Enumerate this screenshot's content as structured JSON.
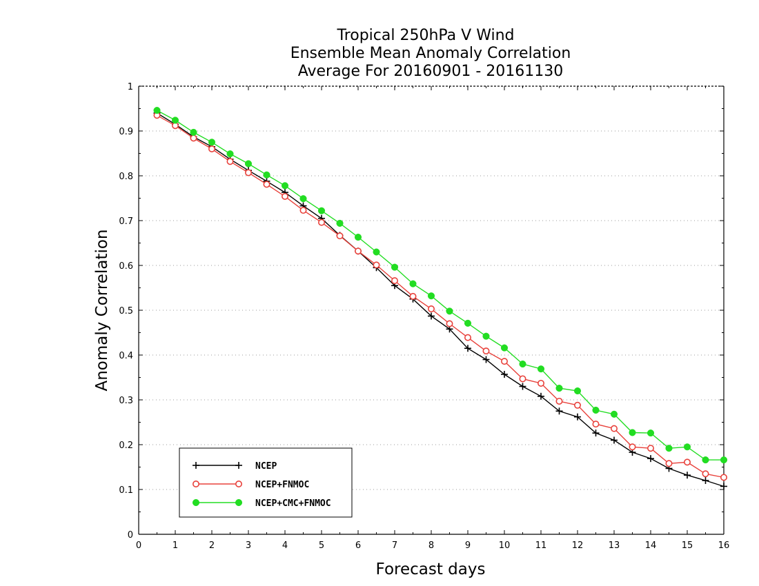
{
  "chart_data": {
    "type": "line",
    "title": [
      "Tropical 250hPa V Wind",
      "Ensemble Mean Anomaly Correlation",
      "Average For 20160901 - 20161130"
    ],
    "xlabel": "Forecast days",
    "ylabel": "Anomaly Correlation",
    "xlim": [
      0,
      16
    ],
    "ylim": [
      0,
      1
    ],
    "xticks": [
      0,
      1,
      2,
      3,
      4,
      5,
      6,
      7,
      8,
      9,
      10,
      11,
      12,
      13,
      14,
      15,
      16
    ],
    "yticks": [
      0,
      0.1,
      0.2,
      0.3,
      0.4,
      0.5,
      0.6,
      0.7,
      0.8,
      0.9,
      1
    ],
    "ytick_labels": [
      "0",
      "0.1",
      "0.2",
      "0.3",
      "0.4",
      "0.5",
      "0.6",
      "0.7",
      "0.8",
      "0.9",
      "1"
    ],
    "grid": "horizontal-dotted",
    "legend_position": "bottom-left",
    "x": [
      0.5,
      1,
      1.5,
      2,
      2.5,
      3,
      3.5,
      4,
      4.5,
      5,
      5.5,
      6,
      6.5,
      7,
      7.5,
      8,
      8.5,
      9,
      9.5,
      10,
      10.5,
      11,
      11.5,
      12,
      12.5,
      13,
      13.5,
      14,
      14.5,
      15,
      15.5,
      16
    ],
    "series": [
      {
        "name": "NCEP",
        "color": "#000000",
        "marker": "plus",
        "values": [
          0.94,
          0.915,
          0.887,
          0.865,
          0.837,
          0.812,
          0.788,
          0.763,
          0.733,
          0.705,
          0.667,
          0.632,
          0.595,
          0.555,
          0.525,
          0.487,
          0.458,
          0.415,
          0.39,
          0.357,
          0.33,
          0.308,
          0.275,
          0.262,
          0.226,
          0.21,
          0.183,
          0.169,
          0.147,
          0.132,
          0.12,
          0.107
        ]
      },
      {
        "name": "NCEP+FNMOC",
        "color": "#e8403a",
        "marker": "open-circle",
        "values": [
          0.935,
          0.912,
          0.884,
          0.86,
          0.832,
          0.807,
          0.781,
          0.754,
          0.723,
          0.696,
          0.666,
          0.632,
          0.601,
          0.566,
          0.531,
          0.503,
          0.47,
          0.439,
          0.409,
          0.386,
          0.347,
          0.337,
          0.297,
          0.288,
          0.246,
          0.236,
          0.195,
          0.192,
          0.158,
          0.161,
          0.135,
          0.127
        ]
      },
      {
        "name": "NCEP+CMC+FNMOC",
        "color": "#22dd22",
        "marker": "filled-circle",
        "values": [
          0.946,
          0.924,
          0.897,
          0.875,
          0.849,
          0.827,
          0.802,
          0.778,
          0.749,
          0.722,
          0.694,
          0.663,
          0.63,
          0.596,
          0.559,
          0.532,
          0.498,
          0.471,
          0.442,
          0.416,
          0.38,
          0.369,
          0.326,
          0.32,
          0.277,
          0.268,
          0.227,
          0.226,
          0.192,
          0.195,
          0.166,
          0.166
        ]
      }
    ]
  }
}
